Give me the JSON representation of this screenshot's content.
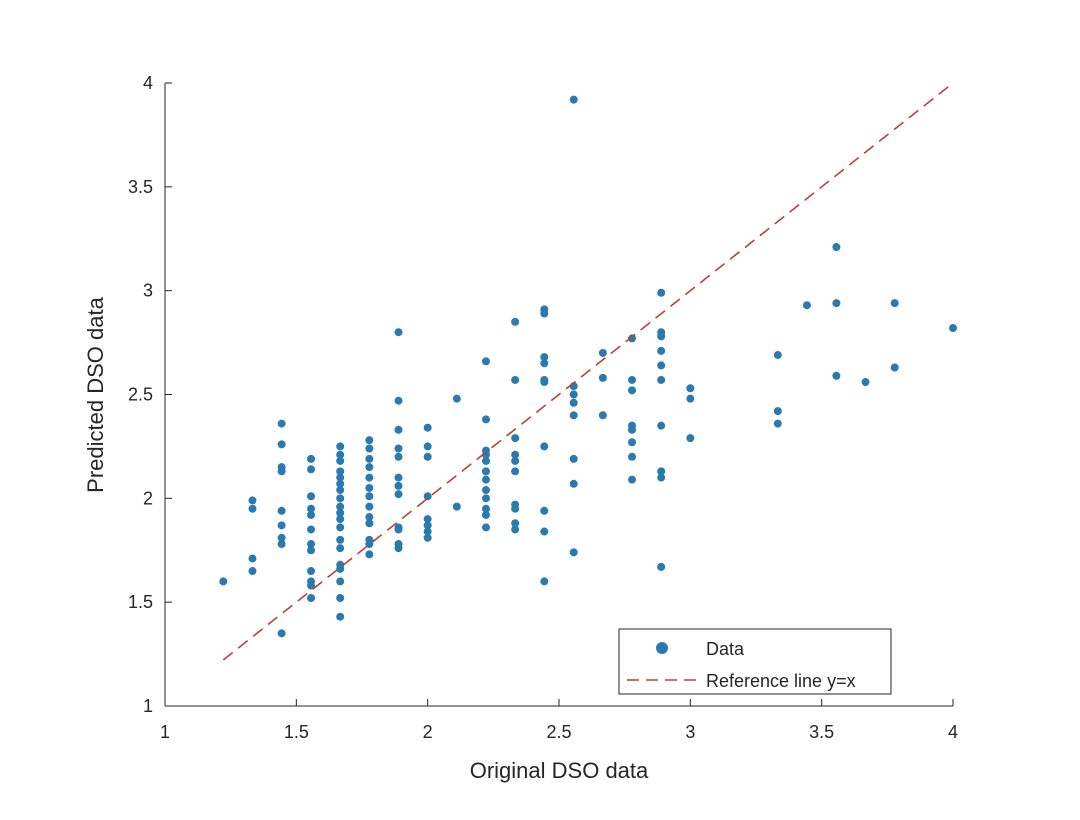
{
  "chart_data": {
    "type": "scatter",
    "title": "",
    "xlabel": "Original DSO data",
    "ylabel": "Predicted DSO data",
    "xlim": [
      1,
      4
    ],
    "ylim": [
      1,
      4
    ],
    "xticks": [
      "1",
      "1.5",
      "2",
      "2.5",
      "3",
      "3.5",
      "4"
    ],
    "yticks": [
      "1",
      "1.5",
      "2",
      "2.5",
      "3",
      "3.5",
      "4"
    ],
    "xtick_values": [
      1,
      1.5,
      2,
      2.5,
      3,
      3.5,
      4
    ],
    "ytick_values": [
      1,
      1.5,
      2,
      2.5,
      3,
      3.5,
      4
    ],
    "grid": false,
    "legend_position": "bottom-right",
    "colors": {
      "data": "#2a7ab0",
      "reference": "#b5433a"
    },
    "series": [
      {
        "name": "Data",
        "kind": "points",
        "columns": [
          {
            "x": 1.222,
            "y": [
              1.6
            ]
          },
          {
            "x": 1.333,
            "y": [
              1.99,
              1.95,
              1.71,
              1.65
            ]
          },
          {
            "x": 1.444,
            "y": [
              2.36,
              2.26,
              2.15,
              2.13,
              1.94,
              1.87,
              1.81,
              1.78,
              1.35
            ]
          },
          {
            "x": 1.556,
            "y": [
              2.19,
              2.14,
              2.01,
              1.95,
              1.92,
              1.85,
              1.78,
              1.75,
              1.65,
              1.6,
              1.58,
              1.52
            ]
          },
          {
            "x": 1.667,
            "y": [
              2.25,
              2.21,
              2.18,
              2.13,
              2.1,
              2.07,
              2.04,
              2.0,
              1.96,
              1.93,
              1.9,
              1.86,
              1.8,
              1.76,
              1.68,
              1.66,
              1.6,
              1.52,
              1.43
            ]
          },
          {
            "x": 1.778,
            "y": [
              2.28,
              2.24,
              2.19,
              2.15,
              2.1,
              2.05,
              2.01,
              1.96,
              1.91,
              1.88,
              1.8,
              1.78,
              1.73
            ]
          },
          {
            "x": 1.889,
            "y": [
              2.8,
              2.47,
              2.33,
              2.24,
              2.2,
              2.1,
              2.06,
              2.02,
              1.86,
              1.85,
              1.78,
              1.76
            ]
          },
          {
            "x": 2.0,
            "y": [
              2.34,
              2.25,
              2.2,
              2.01,
              1.9,
              1.87,
              1.84,
              1.81
            ]
          },
          {
            "x": 2.111,
            "y": [
              2.48,
              1.96
            ]
          },
          {
            "x": 2.222,
            "y": [
              2.66,
              2.38,
              2.23,
              2.21,
              2.18,
              2.13,
              2.09,
              2.04,
              2.0,
              1.95,
              1.92,
              1.86
            ]
          },
          {
            "x": 2.333,
            "y": [
              2.85,
              2.57,
              2.29,
              2.21,
              2.18,
              2.13,
              1.97,
              1.95,
              1.88,
              1.85
            ]
          },
          {
            "x": 2.444,
            "y": [
              2.91,
              2.89,
              2.68,
              2.65,
              2.57,
              2.56,
              2.25,
              1.94,
              1.84,
              1.6
            ]
          },
          {
            "x": 2.556,
            "y": [
              3.92,
              2.54,
              2.5,
              2.46,
              2.4,
              2.19,
              2.07,
              1.74
            ]
          },
          {
            "x": 2.667,
            "y": [
              2.7,
              2.58,
              2.4
            ]
          },
          {
            "x": 2.778,
            "y": [
              2.77,
              2.57,
              2.52,
              2.35,
              2.33,
              2.27,
              2.2,
              2.09
            ]
          },
          {
            "x": 2.889,
            "y": [
              2.99,
              2.8,
              2.78,
              2.71,
              2.64,
              2.57,
              2.35,
              2.13,
              2.1,
              1.67
            ]
          },
          {
            "x": 3.0,
            "y": [
              2.53,
              2.48,
              2.29
            ]
          },
          {
            "x": 3.333,
            "y": [
              2.69,
              2.42,
              2.36
            ]
          },
          {
            "x": 3.444,
            "y": [
              2.93
            ]
          },
          {
            "x": 3.556,
            "y": [
              3.21,
              2.94,
              2.59
            ]
          },
          {
            "x": 3.667,
            "y": [
              2.56
            ]
          },
          {
            "x": 3.778,
            "y": [
              2.94,
              2.63
            ]
          },
          {
            "x": 4.0,
            "y": [
              2.82
            ]
          }
        ]
      },
      {
        "name": "Reference line y=x",
        "kind": "line",
        "x": [
          1.222,
          4.0
        ],
        "y": [
          1.222,
          4.0
        ]
      }
    ]
  }
}
